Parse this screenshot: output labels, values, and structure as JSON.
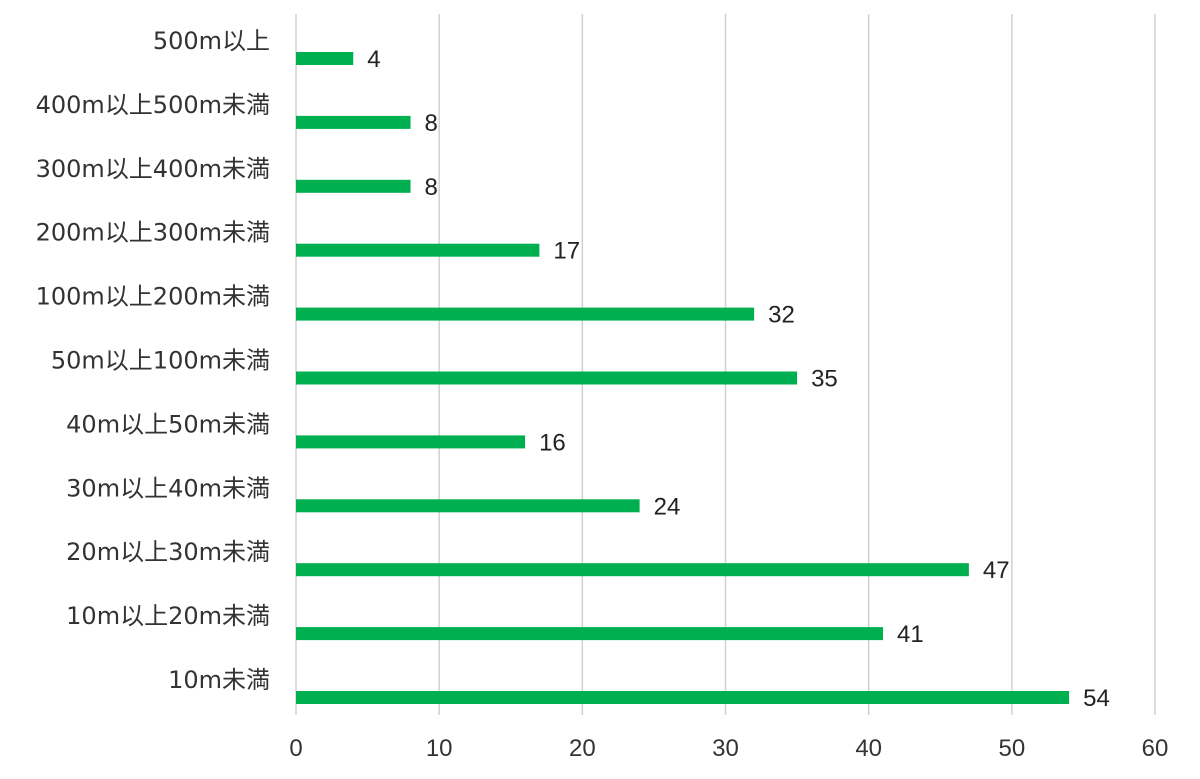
{
  "chart_data": {
    "type": "bar",
    "orientation": "horizontal",
    "categories": [
      "500m以上",
      "400m以上500m未満",
      "300m以上400m未満",
      "200m以上300m未満",
      "100m以上200m未満",
      "50m以上100m未満",
      "40m以上50m未満",
      "30m以上40m未満",
      "20m以上30m未満",
      "10m以上20m未満",
      "10m未満"
    ],
    "values": [
      4,
      8,
      8,
      17,
      32,
      35,
      16,
      24,
      47,
      41,
      54
    ],
    "xlim": [
      0,
      60
    ],
    "xticks": [
      0,
      10,
      20,
      30,
      40,
      50,
      60
    ],
    "grid": true,
    "legend": "none",
    "bar_color": "#00b050"
  }
}
